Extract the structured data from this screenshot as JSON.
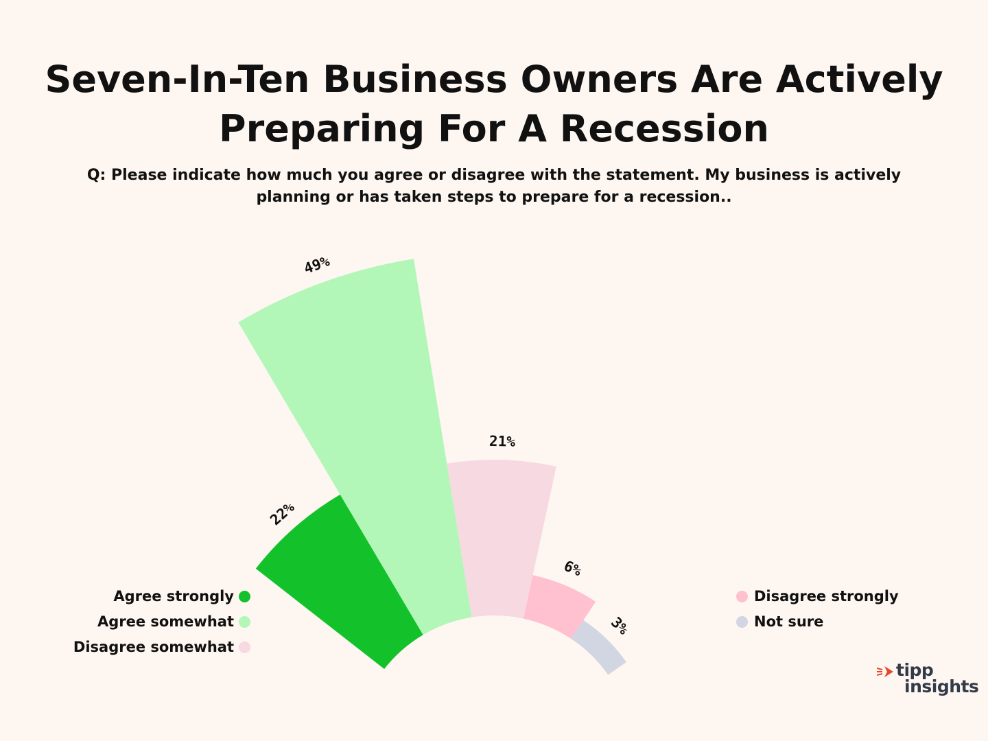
{
  "title": "Seven-In-Ten Business Owners Are Actively Preparing For A Recession",
  "question": "Q: Please indicate how much you agree or disagree with the statement. My business is actively planning or has taken steps to prepare for a recession..",
  "logo": {
    "line1": "tipp",
    "line2": "insights"
  },
  "chart_data": {
    "type": "bar",
    "layout": "radial",
    "categories": [
      "Agree strongly",
      "Agree somewhat",
      "Disagree somewhat",
      "Disagree strongly",
      "Not sure"
    ],
    "values": [
      22,
      49,
      21,
      6,
      3
    ],
    "data_labels": [
      "22%",
      "49%",
      "21%",
      "6%",
      "3%"
    ],
    "colors": [
      "#13c12a",
      "#b2f7b8",
      "#f6d9e1",
      "#ffc0cf",
      "#d2d5e2"
    ],
    "title": "Seven-In-Ten Business Owners Are Actively Preparing For A Recession",
    "legend": {
      "left": [
        {
          "label": "Agree strongly",
          "color": "#13c12a"
        },
        {
          "label": "Agree somewhat",
          "color": "#b2f7b8"
        },
        {
          "label": "Disagree somewhat",
          "color": "#f6d9e1"
        }
      ],
      "right": [
        {
          "label": "Disagree strongly",
          "color": "#ffc0cf"
        },
        {
          "label": "Not sure",
          "color": "#d2d5e2"
        }
      ]
    }
  }
}
